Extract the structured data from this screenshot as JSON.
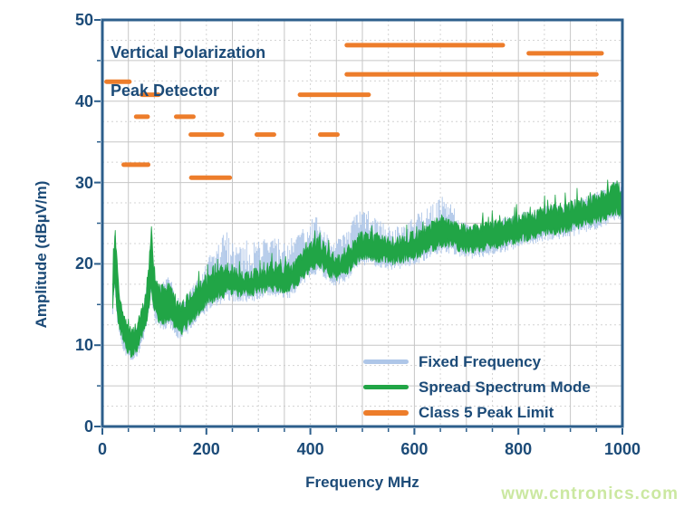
{
  "colors": {
    "navy_text": "#1c4b78",
    "axis_border": "#2d5f8c",
    "grid_solid": "#c6c6c6",
    "grid_dashed": "#d4d4d4",
    "orange": "#ed7d2b",
    "green": "#21a546",
    "light_blue": "#aec6e8",
    "watermark_green": "#cbe8a1",
    "background": "#ffffff"
  },
  "watermark": {
    "text": "www.cntronics.com"
  },
  "chart_data": {
    "type": "line",
    "title": "Vertical Polarization Peak Detector",
    "annotation": {
      "line1": "Vertical Polarization",
      "line2": "Peak Detector"
    },
    "xlabel": "Frequency MHz",
    "ylabel": "Amplitude (dBµV/m)",
    "xlim": [
      0,
      1000
    ],
    "ylim": [
      0,
      50
    ],
    "x_major_ticks": [
      0,
      200,
      400,
      600,
      800,
      1000
    ],
    "y_major_ticks": [
      0,
      10,
      20,
      30,
      40,
      50
    ],
    "x_minor_tick_step": 50,
    "y_minor_tick_step": 5,
    "grid": {
      "x_solid": [
        50,
        150,
        250,
        350,
        450,
        500,
        600,
        700,
        800,
        900
      ],
      "x_dashed": [
        100,
        200,
        300,
        400,
        550,
        650,
        750,
        850,
        950
      ],
      "y_solid": [
        5,
        10,
        15,
        20,
        25,
        30,
        35,
        40,
        45
      ],
      "y_dashed": [
        2.5,
        7.5,
        12.5,
        17.5,
        22.5,
        27.5,
        32.5,
        37.5,
        42.5,
        47.5
      ]
    },
    "legend": [
      {
        "label": "Fixed Frequency",
        "color": "#aec6e8",
        "thickness": 5
      },
      {
        "label": "Spread Spectrum Mode",
        "color": "#21a546",
        "thickness": 5
      },
      {
        "label": "Class 5 Peak Limit",
        "color": "#ed7d2b",
        "thickness": 6
      }
    ],
    "series": [
      {
        "name": "Fixed Frequency",
        "type": "spike_comb",
        "color": "#aec6e8",
        "peak_envelope": [
          [
            20,
            15
          ],
          [
            24,
            23.2
          ],
          [
            28,
            18
          ],
          [
            35,
            13.5
          ],
          [
            45,
            11.5
          ],
          [
            55,
            10.8
          ],
          [
            65,
            11.5
          ],
          [
            75,
            13.8
          ],
          [
            85,
            16.5
          ],
          [
            94,
            22.5
          ],
          [
            100,
            19
          ],
          [
            108,
            17
          ],
          [
            116,
            17.5
          ],
          [
            124,
            18.2
          ],
          [
            132,
            18
          ],
          [
            140,
            16.5
          ],
          [
            150,
            15.2
          ],
          [
            160,
            15.8
          ],
          [
            170,
            16.8
          ],
          [
            180,
            17.6
          ],
          [
            192,
            18.6
          ],
          [
            204,
            20.5
          ],
          [
            212,
            21.5
          ],
          [
            222,
            22.2
          ],
          [
            232,
            23.6
          ],
          [
            242,
            23.8
          ],
          [
            252,
            23
          ],
          [
            262,
            22.4
          ],
          [
            272,
            22.6
          ],
          [
            282,
            22.8
          ],
          [
            292,
            22.6
          ],
          [
            302,
            23
          ],
          [
            312,
            23.2
          ],
          [
            322,
            23.4
          ],
          [
            332,
            23.4
          ],
          [
            342,
            22.8
          ],
          [
            352,
            22.6
          ],
          [
            362,
            23
          ],
          [
            372,
            23.6
          ],
          [
            382,
            24.2
          ],
          [
            392,
            24.8
          ],
          [
            402,
            25.4
          ],
          [
            412,
            25.6
          ],
          [
            422,
            24.6
          ],
          [
            432,
            23.6
          ],
          [
            442,
            22.8
          ],
          [
            452,
            22.8
          ],
          [
            462,
            23.6
          ],
          [
            472,
            24.6
          ],
          [
            482,
            25.6
          ],
          [
            492,
            26.2
          ],
          [
            502,
            26.6
          ],
          [
            512,
            26.4
          ],
          [
            522,
            25.8
          ],
          [
            532,
            25.2
          ],
          [
            542,
            24.8
          ],
          [
            552,
            24.4
          ],
          [
            562,
            24.4
          ],
          [
            572,
            24.5
          ],
          [
            582,
            24.8
          ],
          [
            592,
            25.2
          ],
          [
            602,
            25.8
          ],
          [
            612,
            26.2
          ],
          [
            622,
            26.6
          ],
          [
            632,
            27
          ],
          [
            642,
            27.6
          ],
          [
            652,
            28.2
          ],
          [
            662,
            27.8
          ],
          [
            672,
            27.2
          ],
          [
            682,
            26.6
          ],
          [
            692,
            25.2
          ],
          [
            705,
            24.6
          ],
          [
            720,
            24.6
          ],
          [
            740,
            24.8
          ],
          [
            760,
            25.2
          ],
          [
            780,
            25.6
          ],
          [
            800,
            26
          ],
          [
            820,
            26.4
          ],
          [
            840,
            26.8
          ],
          [
            860,
            27.1
          ],
          [
            880,
            27.3
          ],
          [
            900,
            27.6
          ],
          [
            920,
            28
          ],
          [
            940,
            28.4
          ],
          [
            960,
            28.9
          ],
          [
            978,
            29.6
          ],
          [
            990,
            30.2
          ],
          [
            1000,
            29
          ]
        ]
      },
      {
        "name": "Spread Spectrum Mode",
        "type": "band",
        "color": "#21a546",
        "band_envelope": [
          [
            20,
            15,
            18
          ],
          [
            24,
            18,
            24.2
          ],
          [
            28,
            14,
            20
          ],
          [
            33,
            12.5,
            16
          ],
          [
            40,
            10.5,
            13.5
          ],
          [
            48,
            9.5,
            12
          ],
          [
            55,
            9,
            11.5
          ],
          [
            62,
            9.2,
            11.8
          ],
          [
            70,
            10,
            13
          ],
          [
            78,
            11.5,
            14.5
          ],
          [
            85,
            13,
            17
          ],
          [
            90,
            15,
            20
          ],
          [
            94,
            17,
            24.4
          ],
          [
            98,
            15,
            20
          ],
          [
            104,
            13.5,
            17.5
          ],
          [
            112,
            13,
            16.5
          ],
          [
            120,
            13,
            17
          ],
          [
            128,
            13.2,
            17.2
          ],
          [
            136,
            12.8,
            16.2
          ],
          [
            144,
            12,
            15
          ],
          [
            152,
            11.8,
            14.6
          ],
          [
            160,
            12.2,
            15.2
          ],
          [
            170,
            13,
            16
          ],
          [
            180,
            13.8,
            16.8
          ],
          [
            192,
            14.6,
            17.4
          ],
          [
            204,
            15.4,
            18
          ],
          [
            216,
            15.8,
            18.4
          ],
          [
            228,
            16.2,
            19.2
          ],
          [
            240,
            16.6,
            19.6
          ],
          [
            255,
            16.5,
            19
          ],
          [
            270,
            16.4,
            18.6
          ],
          [
            285,
            16.4,
            18.6
          ],
          [
            300,
            16.8,
            19
          ],
          [
            315,
            17,
            19.3
          ],
          [
            330,
            17.1,
            19.6
          ],
          [
            345,
            16.8,
            19.2
          ],
          [
            360,
            17,
            19.4
          ],
          [
            375,
            17.8,
            20.2
          ],
          [
            390,
            18.8,
            21.4
          ],
          [
            405,
            19.8,
            22.4
          ],
          [
            418,
            20,
            22.6
          ],
          [
            430,
            19.2,
            21.6
          ],
          [
            442,
            18.6,
            20.8
          ],
          [
            455,
            18.4,
            20.6
          ],
          [
            468,
            19,
            21.4
          ],
          [
            482,
            20,
            22.4
          ],
          [
            496,
            20.8,
            23.2
          ],
          [
            510,
            21,
            23.5
          ],
          [
            525,
            20.8,
            23.2
          ],
          [
            540,
            20.6,
            22.8
          ],
          [
            555,
            20.4,
            22.6
          ],
          [
            570,
            20.5,
            22.7
          ],
          [
            585,
            20.7,
            22.9
          ],
          [
            600,
            21,
            23.4
          ],
          [
            615,
            21.4,
            23.8
          ],
          [
            630,
            21.8,
            24.4
          ],
          [
            645,
            22.3,
            25
          ],
          [
            658,
            22.6,
            25.4
          ],
          [
            672,
            22.4,
            25
          ],
          [
            688,
            22,
            24.4
          ],
          [
            705,
            21.8,
            24.1
          ],
          [
            722,
            21.9,
            24.2
          ],
          [
            740,
            22.1,
            24.4
          ],
          [
            760,
            22.4,
            24.7
          ],
          [
            780,
            22.7,
            25.1
          ],
          [
            800,
            23,
            25.4
          ],
          [
            820,
            23.4,
            25.8
          ],
          [
            840,
            23.7,
            26.2
          ],
          [
            860,
            24,
            26.5
          ],
          [
            880,
            24.2,
            26.7
          ],
          [
            900,
            24.5,
            27
          ],
          [
            920,
            24.8,
            27.4
          ],
          [
            940,
            25.2,
            27.8
          ],
          [
            960,
            25.7,
            28.3
          ],
          [
            978,
            26.2,
            29
          ],
          [
            990,
            26.5,
            29.8
          ],
          [
            1000,
            26.2,
            28.6
          ]
        ]
      },
      {
        "name": "Class 5 Peak Limit",
        "type": "segments",
        "color": "#ed7d2b",
        "segments": [
          [
            8,
            52,
            42.4
          ],
          [
            41,
            88,
            32.2
          ],
          [
            65,
            87,
            38.1
          ],
          [
            76,
            108,
            40.8
          ],
          [
            142,
            175,
            38.1
          ],
          [
            170,
            230,
            35.9
          ],
          [
            171,
            245,
            30.6
          ],
          [
            297,
            330,
            35.9
          ],
          [
            380,
            512,
            40.8
          ],
          [
            419,
            452,
            35.9
          ],
          [
            470,
            770,
            46.9
          ],
          [
            470,
            950,
            43.3
          ],
          [
            820,
            960,
            45.9
          ]
        ]
      }
    ]
  }
}
